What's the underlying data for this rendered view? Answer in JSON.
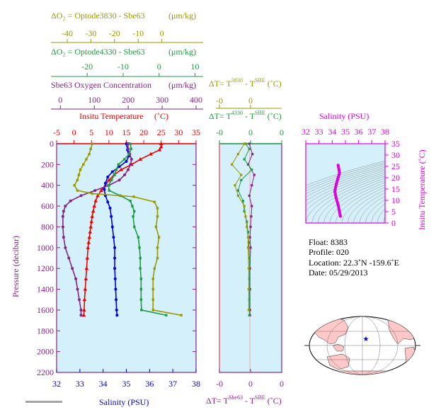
{
  "colors": {
    "olive": "#999900",
    "green": "#229944",
    "purple": "#882288",
    "red": "#ee0000",
    "blue": "#0000dd",
    "magenta": "#dd00dd",
    "panel_bg": "#d4f0fa",
    "land": "#ffc8c8"
  },
  "top_axes": [
    {
      "label": "ΔO₂ = Optode3830 - Sbe63",
      "unit": "(μm/kg)",
      "ticks": [
        "-40",
        "-30",
        "-20",
        "-10",
        "0"
      ],
      "color": "olive"
    },
    {
      "label": "ΔO₂ = Optode4330 - Sbe63",
      "unit": "(μm/kg)",
      "ticks": [
        "-20",
        "-10",
        "0",
        "10"
      ],
      "color": "green"
    },
    {
      "label": "Sbe63 Oxygen Concentration",
      "unit": "(μm/kg)",
      "ticks": [
        "0",
        "100",
        "200",
        "300",
        "400"
      ],
      "color": "purple"
    },
    {
      "label": "Insitu Temperature",
      "unit": "(˚C)",
      "ticks": [
        "-5",
        "0",
        "5",
        "10",
        "15",
        "20",
        "25",
        "30",
        "35"
      ],
      "color": "red"
    }
  ],
  "bottom_axis": {
    "label": "Salinity (PSU)",
    "ticks": [
      "32",
      "33",
      "34",
      "35",
      "36",
      "37",
      "38"
    ]
  },
  "y_axis": {
    "label": "Pressure (decibar)",
    "ticks": [
      "0",
      "200",
      "400",
      "600",
      "800",
      "1000",
      "1200",
      "1400",
      "1600",
      "1800",
      "2000",
      "2200"
    ]
  },
  "dt_axes": {
    "top1": {
      "label": "ΔT= T^3830 - T^SBE (˚C)",
      "ticks": [
        "-0",
        "0"
      ]
    },
    "top2": {
      "label": "ΔT= T^4330 - T^SBE (˚C)",
      "ticks": [
        "-0",
        "0",
        "0"
      ]
    },
    "bottom": {
      "label": "ΔT= T^Sbe63 - T^SBE (˚C)",
      "ticks": [
        "-0",
        "0",
        "0"
      ]
    }
  },
  "ts_panel": {
    "top_label": "Salinity (PSU)",
    "top_ticks": [
      "32",
      "33",
      "34",
      "35",
      "36",
      "37",
      "38"
    ],
    "right_label": "Insitu Temperature (˚C)",
    "right_ticks": [
      "0",
      "5",
      "10",
      "15",
      "20",
      "25",
      "30",
      "35"
    ]
  },
  "info": {
    "float": "Float:  8383",
    "profile": "Profile:  020",
    "location": "Location:  22.3˚N  -159.6˚E",
    "date": "Date:  05/29/2013"
  },
  "chart_data": [
    {
      "type": "line",
      "title": "",
      "ylabel": "Pressure (decibar)",
      "ylim": [
        2200,
        0
      ],
      "series": [
        {
          "name": "Insitu Temperature",
          "color": "red",
          "xlim": [
            -5,
            35
          ],
          "points": [
            [
              25.0,
              0
            ],
            [
              25.0,
              30
            ],
            [
              24.5,
              60
            ],
            [
              22.0,
              100
            ],
            [
              19.0,
              150
            ],
            [
              16.5,
              200
            ],
            [
              13.5,
              250
            ],
            [
              11.5,
              300
            ],
            [
              10.0,
              350
            ],
            [
              9.0,
              400
            ],
            [
              7.8,
              450
            ],
            [
              6.8,
              500
            ],
            [
              6.2,
              550
            ],
            [
              5.8,
              600
            ],
            [
              5.5,
              650
            ],
            [
              5.2,
              700
            ],
            [
              5.0,
              750
            ],
            [
              4.8,
              800
            ],
            [
              4.6,
              850
            ],
            [
              4.4,
              900
            ],
            [
              4.2,
              950
            ],
            [
              4.0,
              1000
            ],
            [
              3.8,
              1100
            ],
            [
              3.6,
              1200
            ],
            [
              3.4,
              1300
            ],
            [
              3.2,
              1400
            ],
            [
              3.0,
              1500
            ],
            [
              2.9,
              1600
            ],
            [
              2.8,
              1650
            ]
          ]
        },
        {
          "name": "Salinity (PSU)",
          "color": "blue",
          "xlim": [
            32,
            38
          ],
          "points": [
            [
              35.0,
              0
            ],
            [
              35.05,
              60
            ],
            [
              35.1,
              120
            ],
            [
              35.0,
              170
            ],
            [
              34.7,
              220
            ],
            [
              34.4,
              270
            ],
            [
              34.2,
              320
            ],
            [
              34.1,
              380
            ],
            [
              34.05,
              440
            ],
            [
              34.1,
              500
            ],
            [
              34.2,
              560
            ],
            [
              34.3,
              620
            ],
            [
              34.35,
              700
            ],
            [
              34.4,
              800
            ],
            [
              34.45,
              900
            ],
            [
              34.5,
              1000
            ],
            [
              34.5,
              1100
            ],
            [
              34.5,
              1200
            ],
            [
              34.52,
              1300
            ],
            [
              34.54,
              1400
            ],
            [
              34.56,
              1500
            ],
            [
              34.58,
              1600
            ],
            [
              34.6,
              1650
            ]
          ]
        },
        {
          "name": "Sbe63 Oxygen Concentration",
          "color": "purple",
          "xlim": [
            0,
            400
          ],
          "points": [
            [
              205,
              0
            ],
            [
              205,
              50
            ],
            [
              210,
              100
            ],
            [
              215,
              150
            ],
            [
              212,
              200
            ],
            [
              205,
              250
            ],
            [
              195,
              300
            ],
            [
              180,
              350
            ],
            [
              150,
              400
            ],
            [
              110,
              450
            ],
            [
              70,
              500
            ],
            [
              40,
              550
            ],
            [
              25,
              600
            ],
            [
              20,
              650
            ],
            [
              18,
              700
            ],
            [
              18,
              800
            ],
            [
              20,
              900
            ],
            [
              25,
              1000
            ],
            [
              35,
              1100
            ],
            [
              45,
              1200
            ],
            [
              55,
              1300
            ],
            [
              60,
              1400
            ],
            [
              65,
              1500
            ],
            [
              70,
              1600
            ],
            [
              70,
              1650
            ]
          ]
        },
        {
          "name": "ΔO₂ = Optode4330 - Sbe63",
          "color": "green",
          "xlim": [
            -25,
            10
          ],
          "points": [
            [
              -6.5,
              0
            ],
            [
              -6.3,
              50
            ],
            [
              -6.8,
              100
            ],
            [
              -8.0,
              150
            ],
            [
              -9.5,
              200
            ],
            [
              -10.0,
              250
            ],
            [
              -10.5,
              300
            ],
            [
              -11.2,
              350
            ],
            [
              -12.0,
              400
            ],
            [
              -11.8,
              450
            ],
            [
              -9.0,
              500
            ],
            [
              -6.5,
              550
            ],
            [
              -6.0,
              600
            ],
            [
              -5.5,
              650
            ],
            [
              -5.8,
              700
            ],
            [
              -5.5,
              800
            ],
            [
              -4.5,
              900
            ],
            [
              -4.2,
              1000
            ],
            [
              -4.0,
              1100
            ],
            [
              -4.0,
              1200
            ],
            [
              -3.8,
              1300
            ],
            [
              -3.8,
              1400
            ],
            [
              -3.8,
              1500
            ],
            [
              -3.7,
              1600
            ],
            [
              2.5,
              1650
            ]
          ]
        },
        {
          "name": "ΔO₂ = Optode3830 - Sbe63",
          "color": "olive",
          "xlim": [
            -45,
            2
          ],
          "points": [
            [
              -33,
              0
            ],
            [
              -33.5,
              50
            ],
            [
              -34,
              100
            ],
            [
              -35,
              150
            ],
            [
              -36,
              200
            ],
            [
              -37,
              250
            ],
            [
              -37.5,
              300
            ],
            [
              -38,
              350
            ],
            [
              -39,
              400
            ],
            [
              -38,
              450
            ],
            [
              -33,
              480
            ],
            [
              -19,
              510
            ],
            [
              -12,
              560
            ],
            [
              -11,
              620
            ],
            [
              -11,
              700
            ],
            [
              -11.5,
              800
            ],
            [
              -10.5,
              900
            ],
            [
              -11,
              1000
            ],
            [
              -11,
              1100
            ],
            [
              -12,
              1200
            ],
            [
              -12.5,
              1300
            ],
            [
              -12.5,
              1400
            ],
            [
              -12.5,
              1500
            ],
            [
              -12.5,
              1600
            ],
            [
              -3,
              1650
            ]
          ]
        }
      ]
    },
    {
      "type": "scatter",
      "title": "",
      "xlabel": "ΔT= T^Sbe63 - T^SBE (˚C)",
      "ylabel": "Pressure (decibar)",
      "ylim": [
        2200,
        0
      ],
      "series": [
        {
          "name": "ΔT= T^Sbe63 - T^SBE",
          "color": "purple",
          "points": [
            [
              -0.002,
              0
            ],
            [
              0.003,
              100
            ],
            [
              -0.004,
              200
            ],
            [
              0.006,
              300
            ],
            [
              0.002,
              400
            ],
            [
              -0.002,
              500
            ],
            [
              0.002,
              600
            ],
            [
              0.001,
              700
            ],
            [
              0.0,
              800
            ],
            [
              -0.001,
              900
            ],
            [
              0.0,
              1000
            ],
            [
              -0.001,
              1200
            ],
            [
              -0.001,
              1400
            ],
            [
              -0.001,
              1600
            ],
            [
              -0.001,
              1650
            ]
          ]
        },
        {
          "name": "ΔT= T^4330 - T^SBE",
          "color": "green",
          "points": [
            [
              -0.008,
              0
            ],
            [
              -0.002,
              50
            ],
            [
              -0.01,
              150
            ],
            [
              0.002,
              250
            ],
            [
              -0.015,
              350
            ],
            [
              -0.02,
              450
            ],
            [
              -0.012,
              550
            ],
            [
              -0.01,
              650
            ],
            [
              -0.006,
              750
            ],
            [
              -0.004,
              850
            ],
            [
              -0.003,
              950
            ],
            [
              -0.002,
              1100
            ],
            [
              -0.002,
              1300
            ],
            [
              -0.002,
              1500
            ],
            [
              -0.002,
              1650
            ]
          ]
        },
        {
          "name": "ΔT= T^3830 - T^SBE",
          "color": "olive",
          "points": [
            [
              -0.01,
              0
            ],
            [
              -0.02,
              100
            ],
            [
              -0.03,
              200
            ],
            [
              -0.015,
              300
            ],
            [
              -0.025,
              400
            ],
            [
              -0.02,
              500
            ],
            [
              -0.01,
              600
            ],
            [
              -0.008,
              700
            ],
            [
              -0.006,
              800
            ],
            [
              -0.004,
              900
            ],
            [
              -0.004,
              1000
            ],
            [
              -0.003,
              1200
            ],
            [
              -0.003,
              1400
            ],
            [
              -0.003,
              1600
            ]
          ]
        }
      ]
    },
    {
      "type": "line",
      "title": "",
      "xlabel": "Salinity (PSU)",
      "ylabel": "Insitu Temperature (˚C)",
      "xlim": [
        32,
        38
      ],
      "ylim": [
        0,
        35
      ],
      "series": [
        {
          "name": "T-S",
          "color": "magenta",
          "points": [
            [
              34.62,
              3
            ],
            [
              34.55,
              5
            ],
            [
              34.45,
              8
            ],
            [
              34.3,
              11
            ],
            [
              34.2,
              14
            ],
            [
              34.3,
              17
            ],
            [
              34.45,
              20
            ],
            [
              34.55,
              22
            ],
            [
              34.5,
              24
            ],
            [
              34.45,
              25.5
            ]
          ]
        }
      ]
    }
  ]
}
